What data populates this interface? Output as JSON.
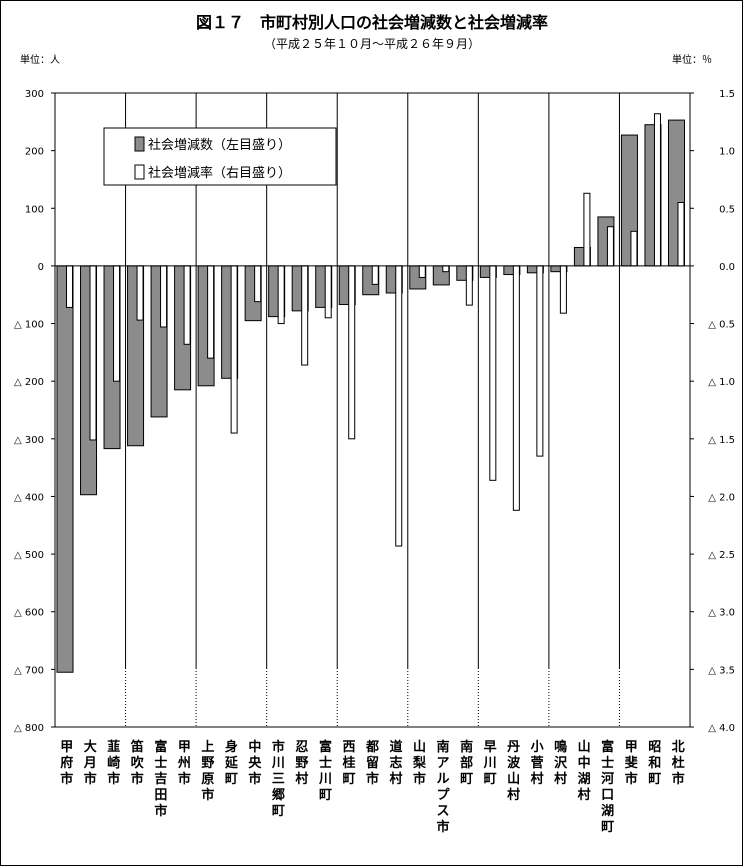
{
  "chart_data": {
    "type": "bar",
    "title": "図１７　市町村別人口の社会増減数と社会増減率",
    "subtitle": "（平成２５年１０月～平成２６年９月）",
    "left_unit": "単位：人",
    "right_unit": "単位：％",
    "left_axis": {
      "ylim": [
        -800,
        300
      ],
      "ticks": [
        300,
        200,
        100,
        0,
        -100,
        -200,
        -300,
        -400,
        -500,
        -600,
        -700,
        -800
      ],
      "tick_labels": [
        "300",
        "200",
        "100",
        "0",
        "△ 100",
        "△ 200",
        "△ 300",
        "△ 400",
        "△ 500",
        "△ 600",
        "△ 700",
        "△ 800"
      ]
    },
    "right_axis": {
      "ylim": [
        -4.0,
        1.5
      ],
      "ticks": [
        1.5,
        1.0,
        0.5,
        0.0,
        -0.5,
        -1.0,
        -1.5,
        -2.0,
        -2.5,
        -3.0,
        -3.5,
        -4.0
      ],
      "tick_labels": [
        "1.5",
        "1.0",
        "0.5",
        "0.0",
        "△ 0.5",
        "△ 1.0",
        "△ 1.5",
        "△ 2.0",
        "△ 2.5",
        "△ 3.0",
        "△ 3.5",
        "△ 4.0"
      ]
    },
    "categories": [
      "甲府市",
      "大月市",
      "韮崎市",
      "笛吹市",
      "富士吉田市",
      "甲州市",
      "上野原市",
      "身延町",
      "中央市",
      "市川三郷町",
      "忍野村",
      "富士川町",
      "西桂町",
      "都留市",
      "道志村",
      "山梨市",
      "南アルプス市",
      "南部町",
      "早川町",
      "丹波山村",
      "小菅村",
      "鳴沢村",
      "山中湖村",
      "富士河口湖町",
      "甲斐市",
      "昭和町",
      "北杜市"
    ],
    "series": [
      {
        "name": "社会増減数（左目盛り）",
        "color": "#8c8c8c",
        "values": [
          -705,
          -397,
          -317,
          -312,
          -262,
          -215,
          -208,
          -195,
          -95,
          -88,
          -78,
          -72,
          -67,
          -50,
          -47,
          -40,
          -33,
          -25,
          -20,
          -15,
          -12,
          -10,
          32,
          85,
          227,
          245,
          253
        ]
      },
      {
        "name": "社会増減率（右目盛り）",
        "color": "#ffffff",
        "values": [
          -0.36,
          -1.51,
          -1.0,
          -0.47,
          -0.53,
          -0.68,
          -0.8,
          -1.45,
          -0.31,
          -0.5,
          -0.86,
          -0.45,
          -1.5,
          -0.16,
          -2.43,
          -0.1,
          -0.05,
          -0.34,
          -1.86,
          -2.12,
          -1.65,
          -0.41,
          0.63,
          0.34,
          0.3,
          1.32,
          0.55
        ]
      }
    ],
    "grid": "vertical dotted separators every 3 categories",
    "legend_position": "top-left inside plot"
  }
}
